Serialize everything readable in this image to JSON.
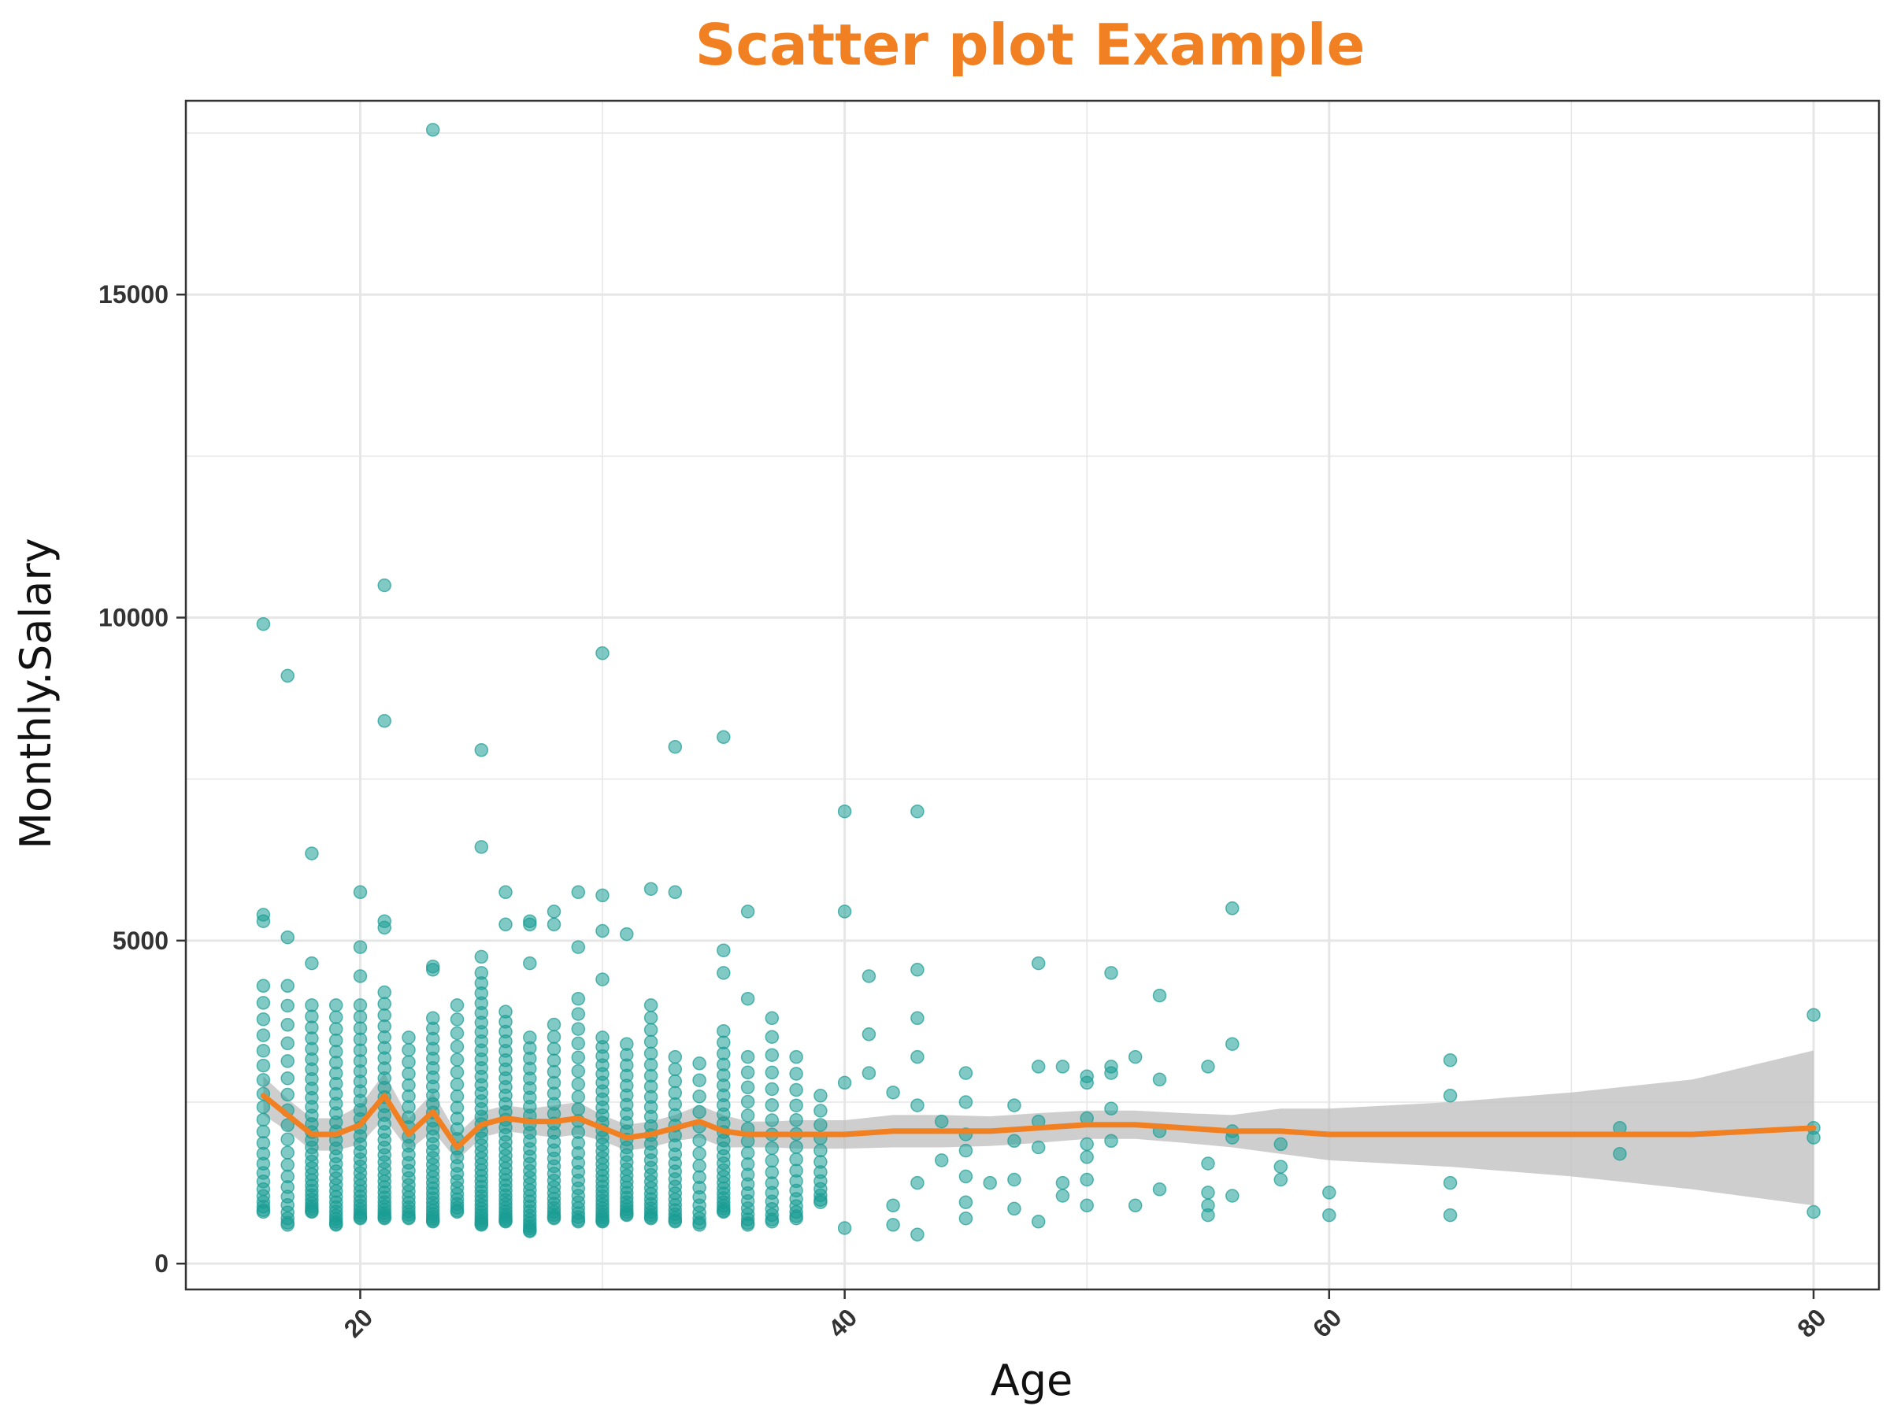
{
  "chart_data": {
    "type": "scatter",
    "title": "Scatter plot Example",
    "xlabel": "Age",
    "ylabel": "Monthly.Salary",
    "xlim": [
      12.8,
      82.7
    ],
    "ylim": [
      -400,
      18000
    ],
    "x_ticks": [
      20,
      40,
      60,
      80
    ],
    "y_ticks": [
      0,
      5000,
      10000,
      15000
    ],
    "x_tick_labels": [
      "20",
      "40",
      "60",
      "80"
    ],
    "y_tick_labels": [
      "0",
      "5000",
      "10000",
      "15000"
    ],
    "grid": true,
    "legend": "none",
    "colors": {
      "points": "#1a9c94",
      "smooth_line": "#f08022",
      "ribbon": "#bdbdbd",
      "title": "#f08022",
      "grid": "#e6e6e6",
      "panel_border": "#333333"
    },
    "outlier_points": [
      [
        16,
        9900
      ],
      [
        16,
        5400
      ],
      [
        16,
        5300
      ],
      [
        17,
        9100
      ],
      [
        17,
        5050
      ],
      [
        18,
        6350
      ],
      [
        18,
        4650
      ],
      [
        20,
        5750
      ],
      [
        20,
        4900
      ],
      [
        20,
        4450
      ],
      [
        21,
        10500
      ],
      [
        21,
        8400
      ],
      [
        21,
        5300
      ],
      [
        21,
        5200
      ],
      [
        23,
        17550
      ],
      [
        23,
        4600
      ],
      [
        23,
        4550
      ],
      [
        25,
        7950
      ],
      [
        25,
        6450
      ],
      [
        25,
        4750
      ],
      [
        26,
        5750
      ],
      [
        26,
        5250
      ],
      [
        27,
        5300
      ],
      [
        27,
        5250
      ],
      [
        27,
        4650
      ],
      [
        28,
        5450
      ],
      [
        28,
        5250
      ],
      [
        29,
        5750
      ],
      [
        29,
        4900
      ],
      [
        30,
        9450
      ],
      [
        30,
        5700
      ],
      [
        30,
        5150
      ],
      [
        30,
        4400
      ],
      [
        31,
        5100
      ],
      [
        32,
        5800
      ],
      [
        33,
        8000
      ],
      [
        33,
        5750
      ],
      [
        35,
        8150
      ],
      [
        35,
        4850
      ],
      [
        35,
        4500
      ],
      [
        36,
        5450
      ],
      [
        36,
        4100
      ],
      [
        40,
        7000
      ],
      [
        40,
        5450
      ],
      [
        40,
        2800
      ],
      [
        40,
        550
      ],
      [
        41,
        4450
      ],
      [
        41,
        3550
      ],
      [
        41,
        2950
      ],
      [
        42,
        2650
      ],
      [
        42,
        900
      ],
      [
        42,
        600
      ],
      [
        43,
        7000
      ],
      [
        43,
        4550
      ],
      [
        43,
        3800
      ],
      [
        43,
        3200
      ],
      [
        43,
        2450
      ],
      [
        43,
        1250
      ],
      [
        43,
        450
      ],
      [
        44,
        2200
      ],
      [
        44,
        1600
      ],
      [
        45,
        2950
      ],
      [
        45,
        2500
      ],
      [
        45,
        2000
      ],
      [
        45,
        1750
      ],
      [
        45,
        1350
      ],
      [
        45,
        950
      ],
      [
        45,
        700
      ],
      [
        46,
        1250
      ],
      [
        47,
        2450
      ],
      [
        47,
        1900
      ],
      [
        47,
        1300
      ],
      [
        47,
        850
      ],
      [
        48,
        4650
      ],
      [
        48,
        3050
      ],
      [
        48,
        2200
      ],
      [
        48,
        1800
      ],
      [
        48,
        650
      ],
      [
        49,
        3050
      ],
      [
        49,
        1250
      ],
      [
        49,
        1050
      ],
      [
        50,
        2900
      ],
      [
        50,
        2800
      ],
      [
        50,
        2250
      ],
      [
        50,
        1850
      ],
      [
        50,
        1650
      ],
      [
        50,
        1300
      ],
      [
        50,
        900
      ],
      [
        51,
        4500
      ],
      [
        51,
        3050
      ],
      [
        51,
        2950
      ],
      [
        51,
        2400
      ],
      [
        51,
        1900
      ],
      [
        52,
        3200
      ],
      [
        52,
        900
      ],
      [
        53,
        4150
      ],
      [
        53,
        2850
      ],
      [
        53,
        2050
      ],
      [
        53,
        1150
      ],
      [
        55,
        3050
      ],
      [
        55,
        1550
      ],
      [
        55,
        1100
      ],
      [
        55,
        900
      ],
      [
        55,
        750
      ],
      [
        56,
        5500
      ],
      [
        56,
        3400
      ],
      [
        56,
        2050
      ],
      [
        56,
        1950
      ],
      [
        56,
        1050
      ],
      [
        58,
        1850
      ],
      [
        58,
        1500
      ],
      [
        58,
        1300
      ],
      [
        60,
        1100
      ],
      [
        60,
        750
      ],
      [
        65,
        3150
      ],
      [
        65,
        2600
      ],
      [
        65,
        1250
      ],
      [
        65,
        750
      ],
      [
        72,
        2100
      ],
      [
        72,
        1700
      ],
      [
        80,
        3850
      ],
      [
        80,
        2100
      ],
      [
        80,
        1950
      ],
      [
        80,
        800
      ]
    ],
    "dense_columns": {
      "ages": [
        16,
        17,
        18,
        19,
        20,
        21,
        22,
        23,
        24,
        25,
        26,
        27,
        28,
        29,
        30,
        31,
        32,
        33,
        34,
        35,
        36,
        37,
        38,
        39
      ],
      "min_values": [
        800,
        600,
        800,
        600,
        700,
        700,
        700,
        650,
        800,
        600,
        650,
        500,
        700,
        650,
        650,
        750,
        700,
        650,
        600,
        800,
        600,
        650,
        700,
        950
      ],
      "max_values": [
        4300,
        4300,
        4000,
        4000,
        4000,
        4200,
        3500,
        3800,
        4000,
        4500,
        3900,
        3500,
        3700,
        4100,
        3500,
        3400,
        4000,
        3200,
        3100,
        3600,
        3200,
        3800,
        3200,
        2600
      ],
      "point_counts": [
        22,
        20,
        30,
        30,
        30,
        32,
        24,
        32,
        24,
        40,
        34,
        30,
        26,
        24,
        32,
        26,
        28,
        22,
        16,
        26,
        18,
        18,
        16,
        12
      ]
    },
    "smooth_line": {
      "x": [
        16,
        17,
        18,
        19,
        20,
        21,
        22,
        23,
        24,
        25,
        26,
        27,
        28,
        29,
        30,
        31,
        32,
        33,
        34,
        35,
        36,
        37,
        38,
        39,
        40,
        42,
        44,
        46,
        48,
        50,
        52,
        54,
        56,
        58,
        60,
        65,
        70,
        75,
        80
      ],
      "y": [
        2600,
        2300,
        2000,
        2000,
        2150,
        2600,
        2000,
        2350,
        1800,
        2150,
        2250,
        2200,
        2200,
        2250,
        2100,
        1950,
        2000,
        2100,
        2200,
        2050,
        2000,
        2000,
        2000,
        2000,
        2000,
        2050,
        2050,
        2050,
        2100,
        2150,
        2150,
        2100,
        2050,
        2050,
        2000,
        2000,
        2000,
        2000,
        2100
      ]
    },
    "confidence_band": {
      "x": [
        16,
        17,
        18,
        19,
        20,
        21,
        22,
        23,
        24,
        25,
        26,
        27,
        28,
        29,
        30,
        31,
        32,
        33,
        34,
        35,
        36,
        37,
        38,
        39,
        40,
        42,
        44,
        46,
        48,
        50,
        52,
        54,
        56,
        58,
        60,
        65,
        70,
        75,
        80
      ],
      "lower": [
        2300,
        2050,
        1750,
        1750,
        1850,
        2250,
        1750,
        2050,
        1600,
        1950,
        2050,
        2000,
        1950,
        2000,
        1900,
        1750,
        1800,
        1900,
        1950,
        1800,
        1800,
        1800,
        1780,
        1780,
        1780,
        1800,
        1800,
        1820,
        1870,
        1930,
        1930,
        1870,
        1800,
        1700,
        1600,
        1500,
        1350,
        1150,
        900
      ],
      "upper": [
        2900,
        2550,
        2250,
        2250,
        2450,
        2950,
        2250,
        2650,
        2000,
        2350,
        2450,
        2400,
        2450,
        2500,
        2300,
        2150,
        2200,
        2300,
        2450,
        2300,
        2200,
        2200,
        2220,
        2220,
        2220,
        2300,
        2300,
        2280,
        2330,
        2370,
        2370,
        2330,
        2300,
        2400,
        2400,
        2500,
        2650,
        2850,
        3300
      ]
    }
  }
}
